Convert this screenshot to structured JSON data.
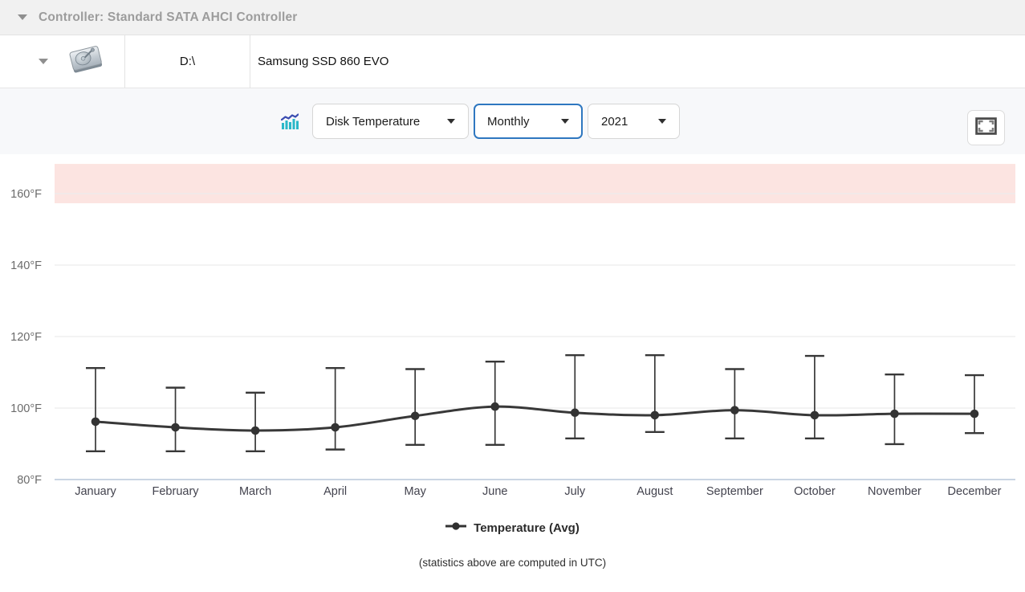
{
  "header": {
    "caret_icon": "caret-down-icon",
    "title": "Controller: Standard SATA AHCI Controller"
  },
  "disk": {
    "expander_icon": "caret-down-icon",
    "drive_icon": "hard-drive-icon",
    "drive_letter": "D:\\",
    "model": "Samsung SSD 860 EVO"
  },
  "toolbar": {
    "chart_icon": "stats-chart-icon",
    "metric": {
      "value": "Disk Temperature"
    },
    "period": {
      "value": "Monthly",
      "focused": true
    },
    "year": {
      "value": "2021"
    },
    "fullscreen_icon": "fullscreen-icon"
  },
  "legend": {
    "label": "Temperature (Avg)",
    "marker_icon": "line-dot-marker-icon"
  },
  "footer_note": "(statistics above are computed in UTC)",
  "colors": {
    "focus_border": "#2e77c0",
    "series_line": "#383838",
    "danger_band": "#fce4e1",
    "grid": "#ececec",
    "axis_line": "#b9c7da",
    "y_label": "#6b6b6b",
    "x_label": "#43434e",
    "icon_teal": "#2ab7c8",
    "icon_blue": "#3b4db1"
  },
  "chart_data": {
    "type": "line",
    "unit": "°F",
    "categories": [
      "January",
      "February",
      "March",
      "April",
      "May",
      "June",
      "July",
      "August",
      "September",
      "October",
      "November",
      "December"
    ],
    "series": [
      {
        "name": "Temperature (Avg)",
        "values": [
          96.2,
          94.6,
          93.7,
          94.6,
          97.8,
          100.4,
          98.7,
          98.0,
          99.4,
          98.0,
          98.4,
          98.4
        ]
      }
    ],
    "error_bars": {
      "high": [
        111.2,
        105.7,
        104.3,
        111.2,
        110.9,
        113.0,
        114.8,
        114.8,
        110.9,
        114.6,
        109.4,
        109.2
      ],
      "low": [
        87.9,
        87.9,
        87.9,
        88.4,
        89.7,
        89.7,
        91.5,
        93.3,
        91.5,
        91.5,
        89.9,
        93.0
      ]
    },
    "y_ticks": [
      80,
      100,
      120,
      140,
      160
    ],
    "y_tick_labels": [
      "80°F",
      "100°F",
      "120°F",
      "140°F",
      "160°F"
    ],
    "ylim": [
      80,
      168.3
    ],
    "danger_zone": {
      "from": 157.3,
      "to": 168.3
    },
    "grid": true,
    "legend_position": "bottom",
    "xlabel": "",
    "ylabel": ""
  }
}
